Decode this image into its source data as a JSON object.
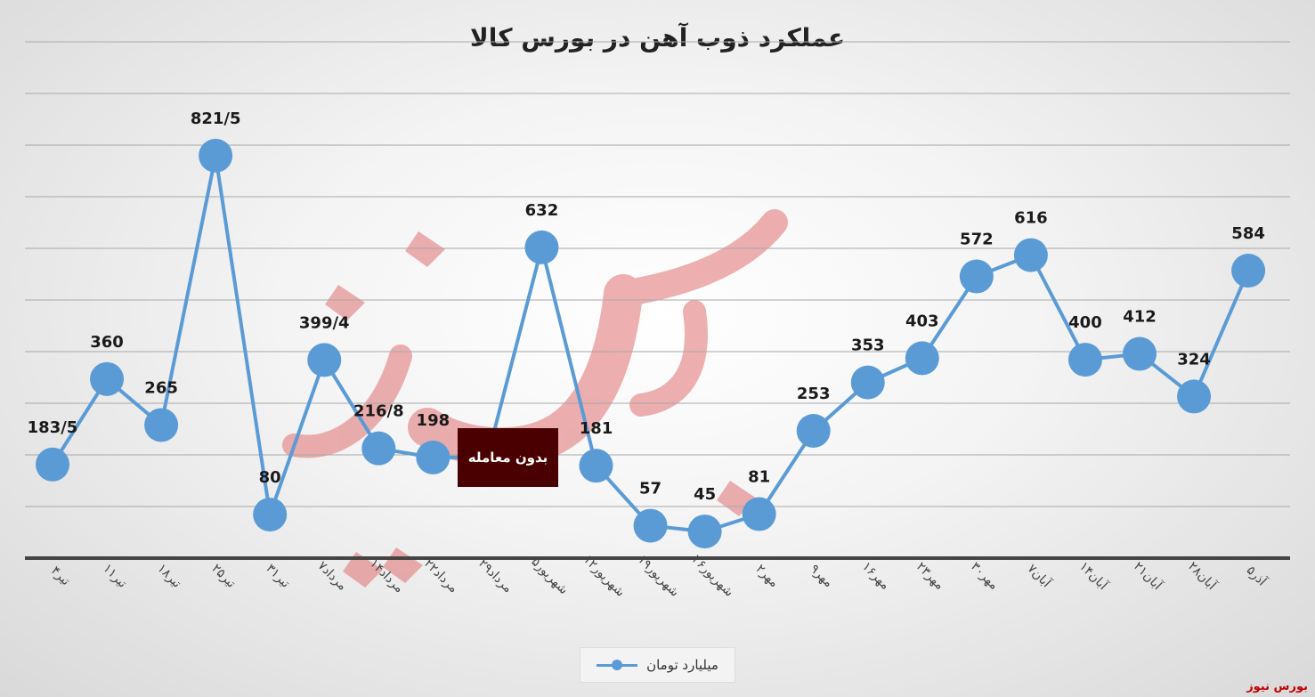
{
  "chart_data": {
    "type": "line",
    "title": "عملکرد ذوب آهن در بورس کالا",
    "categories": [
      "۴تیر",
      "۱۱تیر",
      "۱۸تیر",
      "۲۵تیر",
      "۳۱تیر",
      "۷مرداد",
      "۱۴مرداد",
      "۲۲مرداد",
      "۲۹مرداد",
      "۵شهریور",
      "۱۲شهریور",
      "۱۹شهریور",
      "۲۶شهریور",
      "۲مهر",
      "۹مهر",
      "۱۶مهر",
      "۲۳مهر",
      "۳۰مهر",
      "۷آبان",
      "۱۴آبان",
      "۲۱آبان",
      "۲۸آبان",
      "۵آذر"
    ],
    "series": [
      {
        "name": "میلیارد تومان",
        "values": [
          183.5,
          360,
          265,
          821.5,
          80,
          399.4,
          216.8,
          198,
          198,
          632,
          181,
          57,
          45,
          81,
          253,
          353,
          403,
          572,
          616,
          400,
          412,
          324,
          584
        ],
        "labels": [
          "183/5",
          "360",
          "265",
          "821/5",
          "80",
          "399/4",
          "216/8",
          "198",
          "",
          "632",
          "181",
          "57",
          "45",
          "81",
          "253",
          "353",
          "403",
          "572",
          "616",
          "400",
          "412",
          "324",
          "584"
        ]
      }
    ],
    "ylim": [
      -10,
      950
    ],
    "grid": true,
    "legend_position": "bottom",
    "annotation": "بدون معامله",
    "line_color": "#5b9bd5"
  },
  "source": "بورس نیوز"
}
